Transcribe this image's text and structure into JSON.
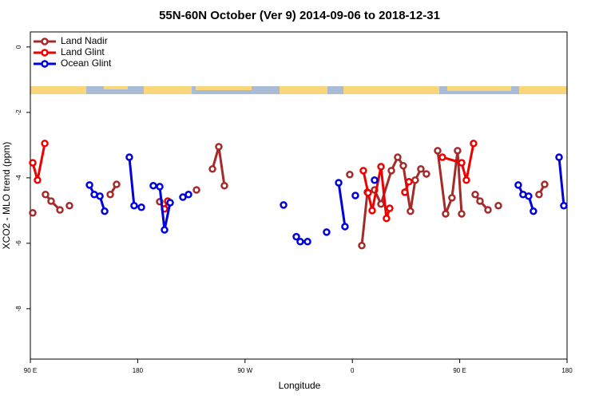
{
  "chart_data": {
    "type": "line",
    "title": "55N-60N October (Ver 9)   2014-09-06 to 2018-12-31",
    "x_label": "Longitude",
    "y_label": "XCO2 - MLO trend (ppm)",
    "xlim": [
      90,
      540
    ],
    "ylim": [
      -9.54,
      0.46
    ],
    "xticks": [
      {
        "value": 90,
        "label": "90 E"
      },
      {
        "value": 180,
        "label": "180"
      },
      {
        "value": 270,
        "label": "90 W"
      },
      {
        "value": 360,
        "label": "0"
      },
      {
        "value": 450,
        "label": "90 E"
      },
      {
        "value": 540,
        "label": "180"
      }
    ],
    "yticks": [
      0,
      -2,
      -4,
      -6,
      -8
    ],
    "legend": "top-left",
    "series": [
      {
        "name": "Land Nadir",
        "color": "#a52a2a",
        "x": [
          92.0,
          null,
          102.7,
          107.4,
          114.8,
          null,
          122.8,
          null,
          157.0,
          162.3,
          null,
          198.5,
          null,
          229.3,
          null,
          242.7,
          248.0,
          252.7,
          null,
          357.8,
          null,
          367.9,
          372.6,
          378.6,
          384.0,
          392.7,
          398.0,
          402.7,
          408.7,
          412.7,
          417.4,
          422.1,
          null,
          431.5,
          438.2,
          443.5,
          448.2,
          451.6,
          null,
          463.0,
          467.0,
          473.7,
          null,
          482.4,
          null,
          516.5,
          521.2
        ],
        "values": [
          -5.07,
          null,
          -4.51,
          -4.71,
          -4.98,
          null,
          -4.85,
          null,
          -4.51,
          -4.2,
          null,
          -4.73,
          null,
          -4.37,
          null,
          -3.73,
          -3.05,
          -4.24,
          null,
          -3.9,
          null,
          -6.07,
          -4.44,
          -4.37,
          -4.8,
          -3.78,
          -3.37,
          -3.63,
          -5.02,
          -4.07,
          -3.73,
          -3.88,
          null,
          -3.17,
          -5.1,
          -4.61,
          -3.17,
          -5.1,
          null,
          -4.51,
          -4.71,
          -4.98,
          null,
          -4.85,
          null,
          -4.51,
          -4.2
        ]
      },
      {
        "name": "Land Glint",
        "color": "#ee0000",
        "x": [
          92.0,
          96.0,
          102.1,
          null,
          202.5,
          205.2,
          null,
          369.2,
          373.2,
          376.6,
          384.0,
          388.6,
          391.3,
          null,
          404.0,
          407.4,
          null,
          435.5,
          451.6,
          455.6,
          461.6
        ],
        "values": [
          -3.54,
          -4.07,
          -2.95,
          null,
          -4.95,
          -4.71,
          null,
          -3.78,
          -4.46,
          -5.0,
          -3.66,
          -5.24,
          -4.93,
          null,
          -4.44,
          -4.12,
          null,
          -3.37,
          -3.54,
          -4.07,
          -2.95
        ]
      },
      {
        "name": "Ocean Glint",
        "color": "#0000dd",
        "x": [
          139.6,
          143.6,
          148.3,
          152.3,
          null,
          173.0,
          177.0,
          183.1,
          null,
          193.1,
          198.5,
          202.5,
          207.2,
          null,
          217.9,
          222.6,
          null,
          302.3,
          null,
          313.0,
          316.3,
          322.4,
          null,
          338.4,
          null,
          348.5,
          353.8,
          null,
          362.5,
          null,
          378.6,
          null,
          499.1,
          503.1,
          507.8,
          511.8,
          null,
          533.3,
          537.3
        ],
        "values": [
          -4.22,
          -4.51,
          -4.56,
          -5.02,
          null,
          -3.37,
          -4.85,
          -4.9,
          null,
          -4.24,
          -4.27,
          -5.59,
          -4.76,
          null,
          -4.59,
          -4.51,
          null,
          -4.83,
          null,
          -5.8,
          -5.95,
          -5.95,
          null,
          -5.66,
          null,
          -4.15,
          -5.49,
          null,
          -4.54,
          null,
          -4.07,
          null,
          -4.22,
          -4.51,
          -4.56,
          -5.02,
          null,
          -3.37,
          -4.85
        ]
      }
    ]
  }
}
